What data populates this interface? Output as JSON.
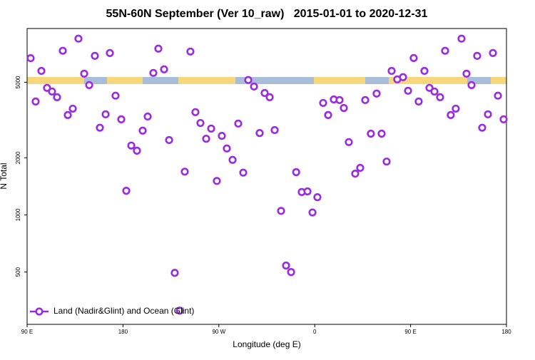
{
  "chart_data": {
    "type": "scatter",
    "title": "55N-60N September (Ver 10_raw)   2015-01-01 to 2020-12-31",
    "x_label": "Longitude (deg E)",
    "y_label": "N Total",
    "yscale": "log",
    "xlim": [
      90,
      540
    ],
    "ylim": [
      265,
      9600
    ],
    "xticks": [
      {
        "value": 90,
        "label": "90 E"
      },
      180,
      {
        "value": 270,
        "label": "90 W"
      },
      {
        "value": 360,
        "label": "0"
      },
      {
        "value": 450,
        "label": "90 E"
      },
      {
        "value": 540,
        "label": "180"
      }
    ],
    "yticks": [
      500,
      1000,
      2000,
      5000
    ],
    "legend": "lower left",
    "series": [
      {
        "name": "Land (Nadir&Glint) and Ocean (Glint)",
        "color": "#9b2be3",
        "x": [
          93.3,
          98.0,
          103.4,
          108.7,
          113.4,
          118.1,
          123.5,
          128.2,
          132.9,
          138.2,
          143.6,
          148.3,
          153.6,
          158.3,
          163.7,
          167.7,
          173.0,
          178.4,
          183.1,
          187.8,
          193.1,
          198.5,
          203.2,
          208.5,
          213.2,
          218.6,
          223.3,
          228.6,
          233.3,
          238.0,
          243.3,
          248.0,
          252.7,
          258.1,
          262.8,
          268.1,
          272.8,
          277.5,
          282.9,
          288.2,
          292.9,
          297.6,
          303.0,
          308.3,
          313.0,
          317.7,
          322.4,
          328.4,
          333.1,
          337.8,
          342.6,
          347.8,
          353.2,
          357.9,
          362.5,
          367.9,
          372.6,
          377.9,
          383.3,
          387.3,
          392.0,
          398.0,
          402.7,
          407.4,
          412.7,
          418.1,
          422.8,
          427.5,
          432.2,
          437.5,
          442.9,
          447.6,
          452.9,
          457.6,
          463.0,
          467.7,
          472.4,
          477.7,
          482.4,
          487.7,
          492.4,
          497.8,
          502.5,
          507.2,
          512.5,
          517.2,
          522.6,
          527.3,
          532.0,
          537.3
        ],
        "values": [
          6700,
          3960,
          5740,
          4670,
          4470,
          4170,
          7330,
          3360,
          3630,
          8490,
          5550,
          4830,
          6890,
          2880,
          3390,
          7130,
          4250,
          3190,
          1340,
          2320,
          2180,
          2780,
          3300,
          5600,
          7520,
          5850,
          2480,
          495,
          313,
          1690,
          7260,
          3480,
          3050,
          2520,
          2850,
          1510,
          2610,
          2240,
          1950,
          3030,
          1670,
          5140,
          4750,
          2700,
          4390,
          4170,
          2800,
          1050,
          541,
          500,
          1680,
          1320,
          1330,
          1030,
          1240,
          3890,
          3360,
          4060,
          4030,
          3660,
          2420,
          1650,
          1770,
          4030,
          2680,
          4360,
          2680,
          1910,
          5740,
          5180,
          5320,
          4510,
          6710,
          3960,
          5740,
          4670,
          4470,
          4170,
          7330,
          3360,
          3630,
          8490,
          5550,
          4830,
          6890,
          2880,
          3390,
          7130,
          4250,
          3190
        ]
      }
    ]
  }
}
